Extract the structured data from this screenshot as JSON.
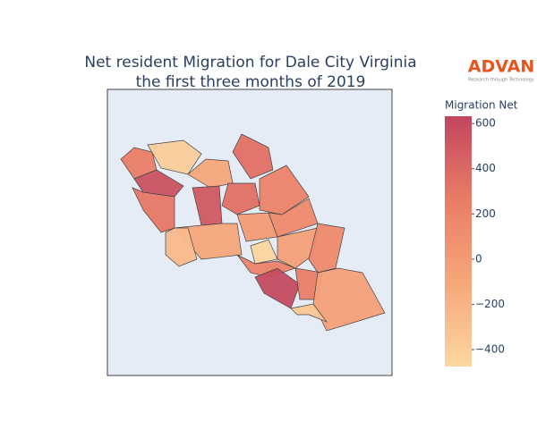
{
  "chart_data": {
    "type": "choropleth",
    "title": [
      "Net resident Migration for Dale City Virginia",
      "the first three months of 2019"
    ],
    "logo": "ADVAN",
    "logo_tagline": "Research through Technology",
    "colorbar_title": "Migration Net",
    "zlim": [
      -475,
      632
    ],
    "zticks": [
      600,
      400,
      200,
      0,
      {
        "value": -200,
        "label": "−200"
      },
      {
        "value": -400,
        "label": "−400"
      }
    ],
    "colorscale": [
      "#fcd7a2",
      "#f6a77a",
      "#ea7c66",
      "#c2465f"
    ],
    "values": [
      250,
      -400,
      550,
      300,
      -100,
      500,
      350,
      350,
      -100,
      -250,
      200,
      0,
      150,
      -450,
      200,
      -50,
      150,
      600,
      250,
      -50,
      -350
    ]
  }
}
